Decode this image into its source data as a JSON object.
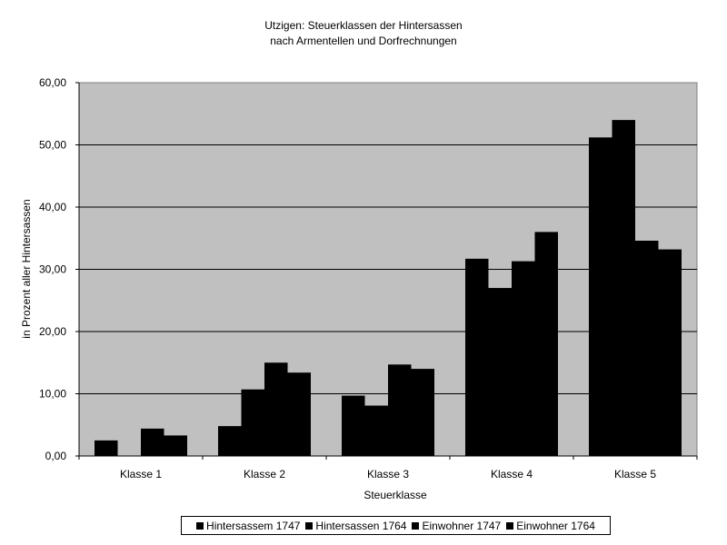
{
  "chart_data": {
    "type": "bar",
    "title": "Utzigen: Steuerklassen der Hintersassen",
    "subtitle": "nach Armentellen und Dorfrechnungen",
    "xlabel": "Steuerklasse",
    "ylabel": "in Prozent aller Hintersassen",
    "ylim": [
      0,
      60
    ],
    "yticks": [
      "0,00",
      "10,00",
      "20,00",
      "30,00",
      "40,00",
      "50,00",
      "60,00"
    ],
    "grid": true,
    "legend_position": "bottom",
    "categories": [
      "Klasse 1",
      "Klasse 2",
      "Klasse 3",
      "Klasse 4",
      "Klasse 5"
    ],
    "series": [
      {
        "name": "Hintersassem 1747",
        "color": "#000000",
        "values": [
          2.5,
          4.8,
          9.7,
          31.7,
          51.2
        ]
      },
      {
        "name": "Hintersassen 1764",
        "color": "#000000",
        "values": [
          0.0,
          10.7,
          8.1,
          27.0,
          54.0
        ]
      },
      {
        "name": "Einwohner 1747",
        "color": "#000000",
        "values": [
          4.4,
          15.0,
          14.7,
          31.3,
          34.6
        ]
      },
      {
        "name": "Einwohner 1764",
        "color": "#000000",
        "values": [
          3.3,
          13.4,
          14.0,
          36.0,
          33.2
        ]
      }
    ],
    "plot_background": "#c0c0c0"
  }
}
